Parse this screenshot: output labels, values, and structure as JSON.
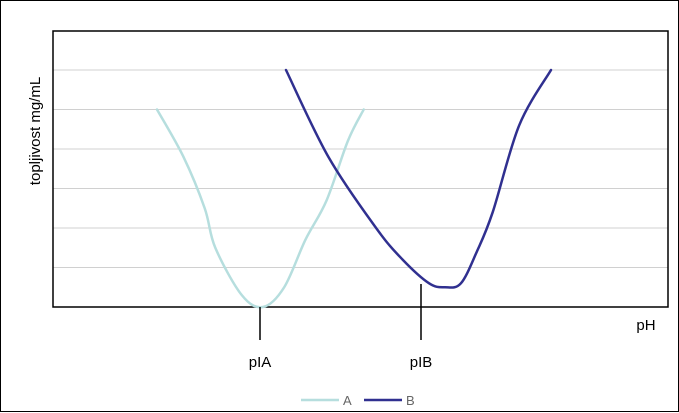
{
  "chart_data": {
    "type": "line",
    "title": "",
    "xlabel": "pH",
    "ylabel": "topljivost mg/mL",
    "x_markers": [
      "pIA",
      "pIB"
    ],
    "grid": true,
    "legend_position": "bottom-center",
    "x_unit": "relative pH position (0 = left edge, 100 = right edge)",
    "y_unit": "relative solubility (0 = bottom, 6 = top gridline)",
    "ylim": [
      0,
      6
    ],
    "series": [
      {
        "name": "A",
        "color": "#b6dede",
        "points": [
          [
            0,
            5.0
          ],
          [
            5,
            3.8
          ],
          [
            9,
            2.5
          ],
          [
            11,
            1.5
          ],
          [
            16,
            0.3
          ],
          [
            20,
            0
          ],
          [
            24,
            0.5
          ],
          [
            28,
            1.7
          ],
          [
            32,
            2.7
          ],
          [
            36,
            4.2
          ],
          [
            39,
            5.0
          ]
        ]
      },
      {
        "name": "B",
        "color": "#303090",
        "points": [
          [
            0,
            6.0
          ],
          [
            8,
            3.8
          ],
          [
            17,
            2.0
          ],
          [
            22,
            1.2
          ],
          [
            27,
            0.6
          ],
          [
            30,
            0.5
          ],
          [
            33,
            0.6
          ],
          [
            36,
            1.4
          ],
          [
            39,
            2.4
          ],
          [
            44,
            4.6
          ],
          [
            50,
            6.0
          ]
        ]
      }
    ]
  }
}
